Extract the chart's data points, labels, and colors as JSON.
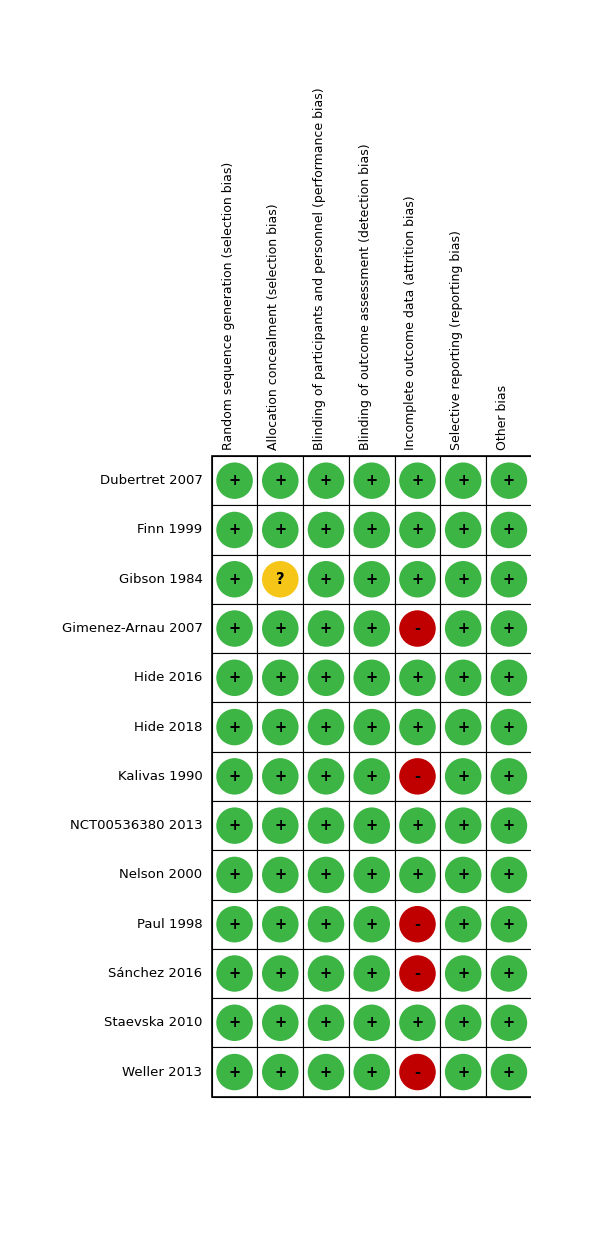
{
  "studies": [
    "Dubertret 2007",
    "Finn 1999",
    "Gibson 1984",
    "Gimenez-Arnau 2007",
    "Hide 2016",
    "Hide 2018",
    "Kalivas 1990",
    "NCT00536380 2013",
    "Nelson 2000",
    "Paul 1998",
    "Sánchez 2016",
    "Staevska 2010",
    "Weller 2013"
  ],
  "columns": [
    "Random sequence generation (selection bias)",
    "Allocation concealment (selection bias)",
    "Blinding of participants and personnel (performance bias)",
    "Blinding of outcome assessment (detection bias)",
    "Incomplete outcome data (attrition bias)",
    "Selective reporting (reporting bias)",
    "Other bias"
  ],
  "data": [
    [
      "+",
      "+",
      "+",
      "+",
      "+",
      "+",
      "+"
    ],
    [
      "+",
      "+",
      "+",
      "+",
      "+",
      "+",
      "+"
    ],
    [
      "+",
      "?",
      "+",
      "+",
      "+",
      "+",
      "+"
    ],
    [
      "+",
      "+",
      "+",
      "+",
      "-",
      "+",
      "+"
    ],
    [
      "+",
      "+",
      "+",
      "+",
      "+",
      "+",
      "+"
    ],
    [
      "+",
      "+",
      "+",
      "+",
      "+",
      "+",
      "+"
    ],
    [
      "+",
      "+",
      "+",
      "+",
      "-",
      "+",
      "+"
    ],
    [
      "+",
      "+",
      "+",
      "+",
      "+",
      "+",
      "+"
    ],
    [
      "+",
      "+",
      "+",
      "+",
      "+",
      "+",
      "+"
    ],
    [
      "+",
      "+",
      "+",
      "+",
      "-",
      "+",
      "+"
    ],
    [
      "+",
      "+",
      "+",
      "+",
      "-",
      "+",
      "+"
    ],
    [
      "+",
      "+",
      "+",
      "+",
      "+",
      "+",
      "+"
    ],
    [
      "+",
      "+",
      "+",
      "+",
      "-",
      "+",
      "+"
    ]
  ],
  "color_map": {
    "+": "#3cb544",
    "-": "#c00000",
    "?": "#f5c518"
  },
  "figure_width": 5.9,
  "figure_height": 12.53,
  "row_label_fontsize": 9.5,
  "col_label_fontsize": 9.0,
  "symbol_fontsize": 10.5
}
